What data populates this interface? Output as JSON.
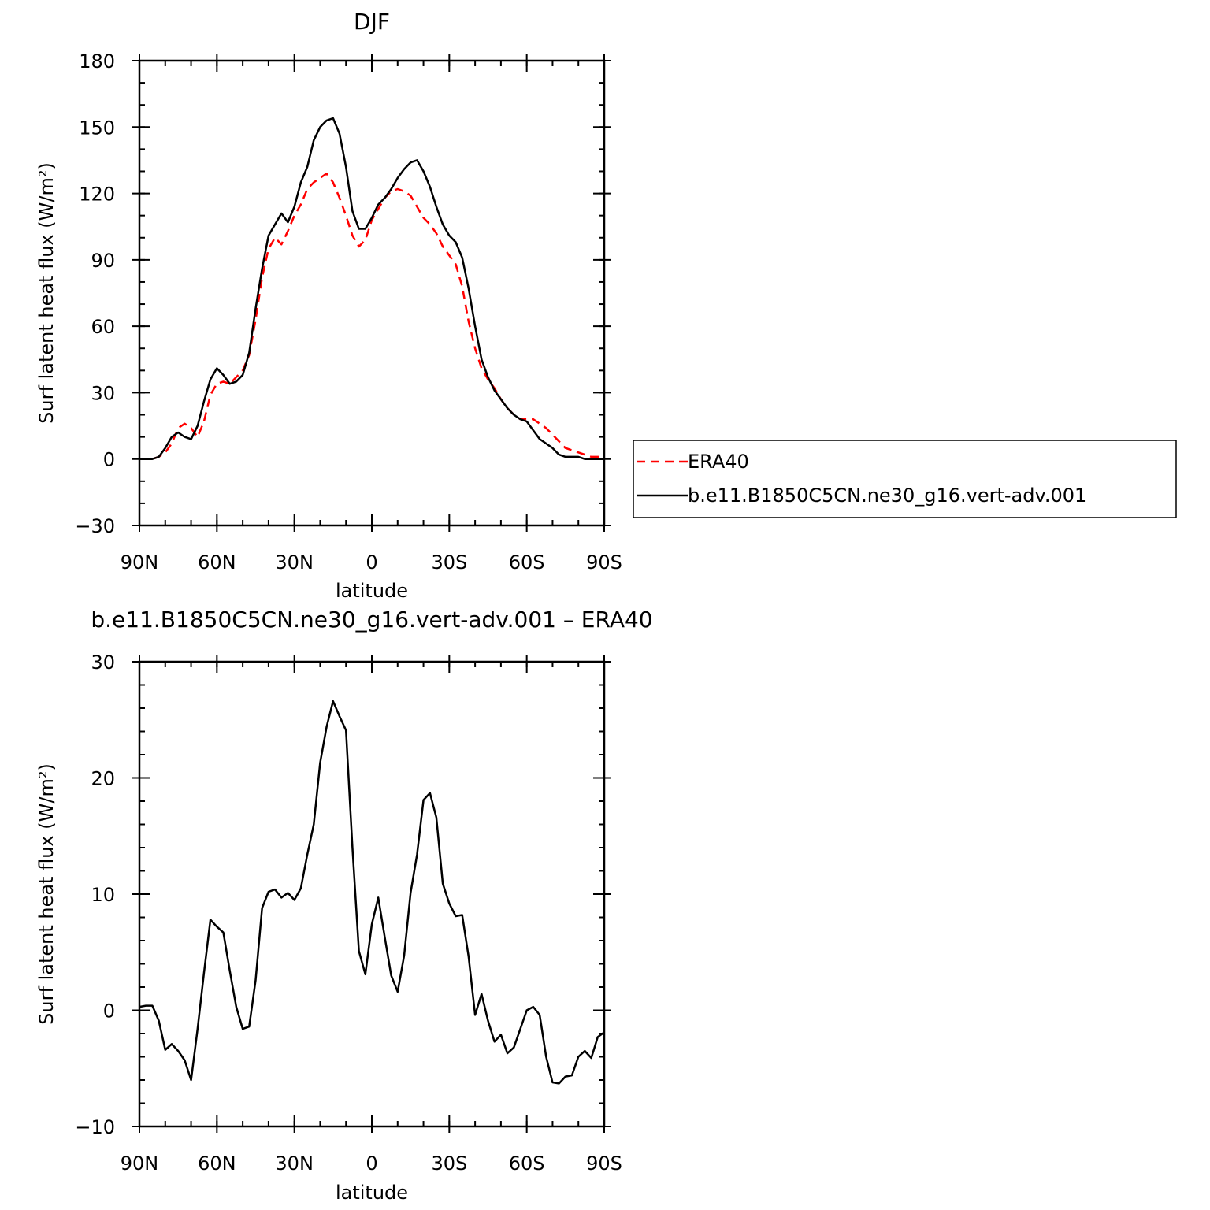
{
  "chart_data": [
    {
      "type": "line",
      "title": "DJF",
      "xlabel": "latitude",
      "ylabel": "Surf latent heat flux (W/m²)",
      "xlim": [
        90,
        -90
      ],
      "ylim": [
        -30,
        180
      ],
      "x_major_ticks": [
        90,
        60,
        30,
        0,
        -30,
        -60,
        -90
      ],
      "x_tick_labels": [
        "90N",
        "60N",
        "30N",
        "0",
        "30S",
        "60S",
        "90S"
      ],
      "x_minor_step": 10,
      "y_major_ticks": [
        -30,
        0,
        30,
        60,
        90,
        120,
        150,
        180
      ],
      "y_tick_labels": [
        "−30",
        "0",
        "30",
        "60",
        "90",
        "120",
        "150",
        "180"
      ],
      "y_minor_step": 10,
      "legend_position": "right",
      "series": [
        {
          "name": "ERA40",
          "color": "#ff0000",
          "dashed": true,
          "x": [
            90,
            87.5,
            85,
            82.5,
            80,
            77.5,
            75,
            72.5,
            70,
            67.5,
            65,
            62.5,
            60,
            57.5,
            55,
            52.5,
            50,
            47.5,
            45,
            42.5,
            40,
            37.5,
            35,
            32.5,
            30,
            27.5,
            25,
            22.5,
            20,
            17.5,
            15,
            12.5,
            10,
            7.5,
            5,
            2.5,
            0,
            -2.5,
            -5,
            -7.5,
            -10,
            -12.5,
            -15,
            -17.5,
            -20,
            -22.5,
            -25,
            -27.5,
            -30,
            -32.5,
            -35,
            -37.5,
            -40,
            -42.5,
            -45,
            -47.5,
            -50,
            -52.5,
            -55,
            -57.5,
            -60,
            -62.5,
            -65,
            -67.5,
            -70,
            -72.5,
            -75,
            -77.5,
            -80,
            -82.5,
            -85,
            -87.5,
            -90
          ],
          "y": [
            0,
            0,
            0,
            1,
            3,
            7,
            14,
            16,
            14,
            10,
            17,
            29,
            34,
            35,
            34,
            37,
            40,
            47,
            63,
            82,
            95,
            100,
            97,
            103,
            110,
            115,
            122,
            125,
            127,
            129,
            125,
            118,
            110,
            101,
            96,
            99,
            108,
            113,
            118,
            121,
            122,
            121,
            119,
            114,
            109,
            106,
            102,
            96,
            92,
            88,
            78,
            62,
            50,
            41,
            36,
            32,
            27,
            23,
            20,
            18,
            18,
            18,
            16,
            14,
            11,
            8,
            5,
            4,
            3,
            2,
            1,
            1,
            1
          ]
        },
        {
          "name": "b.e11.B1850C5CN.ne30_g16.vert-adv.001",
          "color": "#000000",
          "dashed": false,
          "x": [
            90,
            87.5,
            85,
            82.5,
            80,
            77.5,
            75,
            72.5,
            70,
            67.5,
            65,
            62.5,
            60,
            57.5,
            55,
            52.5,
            50,
            47.5,
            45,
            42.5,
            40,
            37.5,
            35,
            32.5,
            30,
            27.5,
            25,
            22.5,
            20,
            17.5,
            15,
            12.5,
            10,
            7.5,
            5,
            2.5,
            0,
            -2.5,
            -5,
            -7.5,
            -10,
            -12.5,
            -15,
            -17.5,
            -20,
            -22.5,
            -25,
            -27.5,
            -30,
            -32.5,
            -35,
            -37.5,
            -40,
            -42.5,
            -45,
            -47.5,
            -50,
            -52.5,
            -55,
            -57.5,
            -60,
            -62.5,
            -65,
            -67.5,
            -70,
            -72.5,
            -75,
            -77.5,
            -80,
            -82.5,
            -85,
            -87.5,
            -90
          ],
          "y": [
            0,
            0,
            0,
            1,
            5,
            10,
            12,
            10,
            9,
            15,
            26,
            36,
            41,
            38,
            34,
            35,
            38,
            48,
            68,
            86,
            101,
            106,
            111,
            107,
            114,
            125,
            132,
            144,
            150,
            153,
            154,
            147,
            132,
            112,
            104,
            104,
            109,
            115,
            118,
            122,
            127,
            131,
            134,
            135,
            130,
            123,
            114,
            106,
            101,
            98,
            91,
            77,
            60,
            45,
            37,
            31,
            27,
            23,
            20,
            18,
            17,
            13,
            9,
            7,
            5,
            2,
            1,
            1,
            1,
            0,
            0,
            0,
            0
          ]
        }
      ]
    },
    {
      "type": "line",
      "title": "b.e11.B1850C5CN.ne30_g16.vert-adv.001  –  ERA40",
      "xlabel": "latitude",
      "ylabel": "Surf latent heat flux (W/m²)",
      "xlim": [
        90,
        -90
      ],
      "ylim": [
        -10,
        30
      ],
      "x_major_ticks": [
        90,
        60,
        30,
        0,
        -30,
        -60,
        -90
      ],
      "x_tick_labels": [
        "90N",
        "60N",
        "30N",
        "0",
        "30S",
        "60S",
        "90S"
      ],
      "x_minor_step": 10,
      "y_major_ticks": [
        -10,
        0,
        10,
        20,
        30
      ],
      "y_tick_labels": [
        "−10",
        "0",
        "10",
        "20",
        "30"
      ],
      "y_minor_step": 2,
      "series": [
        {
          "name": "b.e11.B1850C5CN.ne30_g16.vert-adv.001 − ERA40",
          "color": "#000000",
          "dashed": false,
          "x": [
            90,
            87.5,
            85,
            82.5,
            80,
            77.5,
            75,
            72.5,
            70,
            67.5,
            65,
            62.5,
            60,
            57.5,
            55,
            52.5,
            50,
            47.5,
            45,
            42.5,
            40,
            37.5,
            35,
            32.5,
            30,
            27.5,
            25,
            22.5,
            20,
            17.5,
            15,
            12.5,
            10,
            7.5,
            5,
            2.5,
            0,
            -2.5,
            -5,
            -7.5,
            -10,
            -12.5,
            -15,
            -17.5,
            -20,
            -22.5,
            -25,
            -27.5,
            -30,
            -32.5,
            -35,
            -37.5,
            -40,
            -42.5,
            -45,
            -47.5,
            -50,
            -52.5,
            -55,
            -57.5,
            -60,
            -62.5,
            -65,
            -67.5,
            -70,
            -72.5,
            -75,
            -77.5,
            -80,
            -82.5,
            -85,
            -87.5,
            -90
          ],
          "y": [
            0.3,
            0.4,
            0.4,
            -0.9,
            -3.4,
            -2.9,
            -3.5,
            -4.3,
            -6.0,
            -1.6,
            3.2,
            7.8,
            7.2,
            6.7,
            3.4,
            0.3,
            -1.6,
            -1.4,
            2.6,
            8.8,
            10.2,
            10.4,
            9.7,
            10.1,
            9.5,
            10.5,
            13.4,
            16.0,
            21.3,
            24.4,
            26.6,
            25.3,
            24.1,
            14.0,
            5.1,
            3.1,
            7.4,
            9.7,
            6.3,
            3.0,
            1.6,
            4.7,
            10.1,
            13.4,
            18.1,
            18.7,
            16.6,
            10.9,
            9.2,
            8.1,
            8.2,
            4.6,
            -0.4,
            1.4,
            -0.9,
            -2.7,
            -2.1,
            -3.7,
            -3.2,
            -1.6,
            0.0,
            0.3,
            -0.4,
            -4.0,
            -6.2,
            -6.3,
            -5.7,
            -5.6,
            -4.0,
            -3.5,
            -4.1,
            -2.3,
            -1.9
          ]
        }
      ]
    }
  ]
}
